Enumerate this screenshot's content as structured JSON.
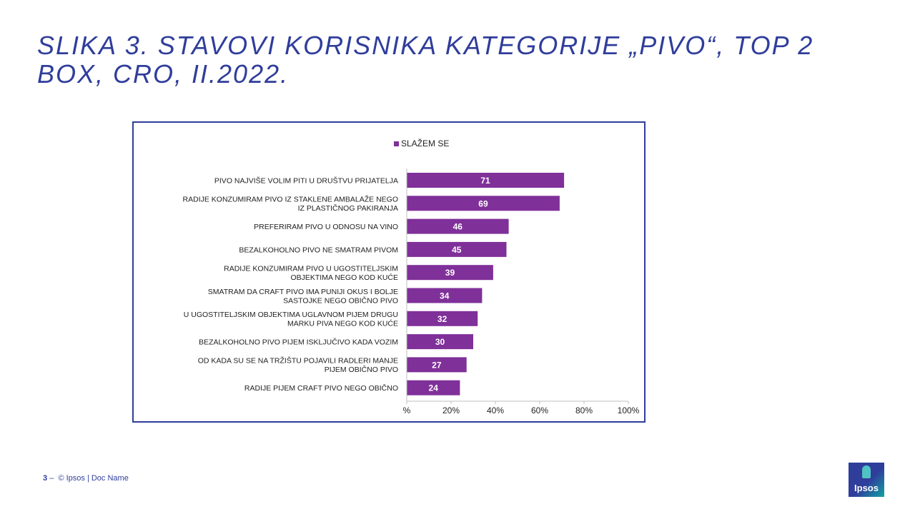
{
  "slide": {
    "title": "SLIKA 3. STAVOVI KORISNIKA KATEGORIJE „PIVO“, TOP 2 BOX, CRO, II.2022."
  },
  "footer": {
    "page_number": "3",
    "dash": "–",
    "text": "© Ipsos | Doc Name"
  },
  "logo": {
    "text": "Ipsos"
  },
  "colors": {
    "bar": "#7f3099",
    "title": "#2f3d9b",
    "border": "#2f3d9b"
  },
  "chart_data": {
    "type": "bar",
    "orientation": "horizontal",
    "legend": {
      "entries": [
        "SLAŽEM SE"
      ],
      "placement": "top-center"
    },
    "categories": [
      [
        "PIVO NAJVIŠE VOLIM PITI U DRUŠTVU PRIJATELJA"
      ],
      [
        "RADIJE KONZUMIRAM PIVO IZ STAKLENE AMBALAŽE NEGO",
        "IZ PLASTIČNOG PAKIRANJA"
      ],
      [
        "PREFERIRAM PIVO U ODNOSU NA VINO"
      ],
      [
        "BEZALKOHOLNO PIVO NE SMATRAM PIVOM"
      ],
      [
        "RADIJE KONZUMIRAM PIVO U UGOSTITELJSKIM",
        "OBJEKTIMA NEGO KOD KUĆE"
      ],
      [
        "SMATRAM DA CRAFT PIVO IMA PUNIJI OKUS I BOLJE",
        "SASTOJKE NEGO OBIČNO PIVO"
      ],
      [
        "U UGOSTITELJSKIM OBJEKTIMA UGLAVNOM PIJEM DRUGU",
        "MARKU PIVA NEGO KOD KUĆE"
      ],
      [
        "BEZALKOHOLNO PIVO PIJEM ISKLJUČIVO KADA VOZIM"
      ],
      [
        "OD KADA SU SE NA TRŽIŠTU POJAVILI RADLERI MANJE",
        "PIJEM OBIČNO PIVO"
      ],
      [
        "RADIJE PIJEM CRAFT PIVO NEGO OBIČNO"
      ]
    ],
    "series": [
      {
        "name": "SLAŽEM SE",
        "values": [
          71,
          69,
          46,
          45,
          39,
          34,
          32,
          30,
          27,
          24
        ]
      }
    ],
    "xlim": [
      0,
      100
    ],
    "xticks": [
      "%",
      "20%",
      "40%",
      "60%",
      "80%",
      "100%"
    ],
    "grid": false,
    "data_labels": true
  }
}
